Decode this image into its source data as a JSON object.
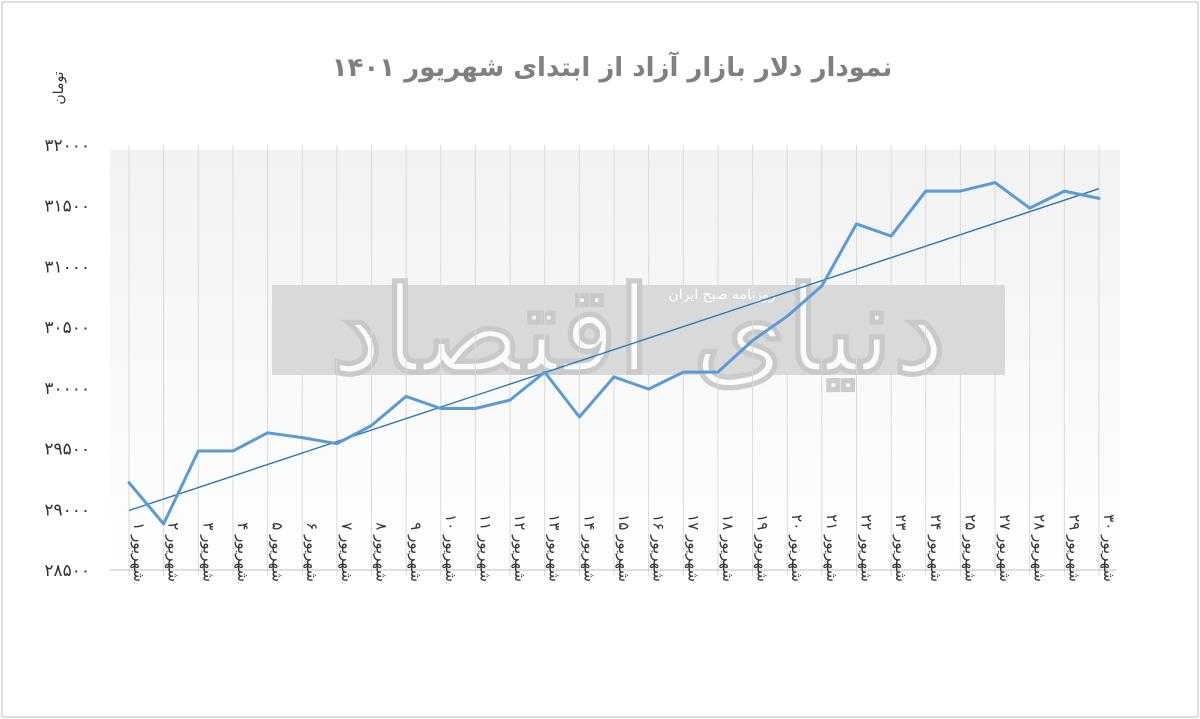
{
  "watermark": {
    "main_text": "دنیای اقتصاد",
    "sub_text": "روزنامه صبح ایران"
  },
  "colors": {
    "series": "#5b9bd5",
    "trendline": "#2e75b6",
    "grid": "#d9d9d9",
    "text": "#333333",
    "title": "#808080"
  },
  "chart_data": {
    "type": "line",
    "title": "نمودار دلار بازار آزاد از ابتدای شهریور ۱۴۰۱",
    "ylabel": "تومان",
    "xlabel": "",
    "ylim": [
      28500,
      32000
    ],
    "yticks": [
      28500,
      29000,
      29500,
      30000,
      30500,
      31000,
      31500,
      32000
    ],
    "ytick_labels": [
      "۲۸۵۰۰",
      "۲۹۰۰۰",
      "۲۹۵۰۰",
      "۳۰۰۰۰",
      "۳۰۵۰۰",
      "۳۱۰۰۰",
      "۳۱۵۰۰",
      "۳۲۰۰۰"
    ],
    "categories": [
      "شهریور ۱",
      "شهریور ۲",
      "شهریور ۳",
      "شهریور ۴",
      "شهریور ۵",
      "شهریور ۶",
      "شهریور ۷",
      "شهریور ۸",
      "شهریور ۹",
      "شهریور ۱۰",
      "شهریور ۱۱",
      "شهریور ۱۲",
      "شهریور ۱۳",
      "شهریور ۱۴",
      "شهریور ۱۵",
      "شهریور ۱۶",
      "شهریور ۱۷",
      "شهریور ۱۸",
      "شهریور ۱۹",
      "شهریور ۲۰",
      "شهریور ۲۱",
      "شهریور ۲۲",
      "شهریور ۲۳",
      "شهریور ۲۴",
      "شهریور ۲۵",
      "شهریور ۲۷",
      "شهریور ۲۸",
      "شهریور ۲۹",
      "شهریور ۳۰"
    ],
    "series": [
      {
        "values": [
          29220,
          28880,
          29480,
          29480,
          29630,
          29590,
          29540,
          29690,
          29930,
          29830,
          29830,
          29900,
          30130,
          29760,
          30090,
          29990,
          30130,
          30130,
          30390,
          30590,
          30840,
          31350,
          31250,
          31620,
          31620,
          31690,
          31480,
          31620,
          31560
        ]
      }
    ],
    "trendline": {
      "type": "linear",
      "start": 28990,
      "end": 31640
    },
    "grid": {
      "vertical": true,
      "horizontal": false
    },
    "legend": "none"
  }
}
